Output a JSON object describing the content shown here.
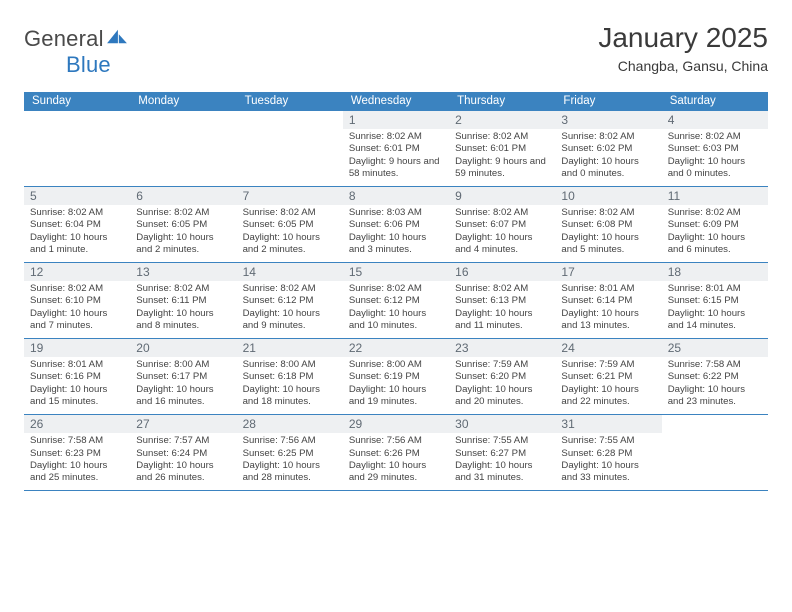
{
  "logo": {
    "word1": "General",
    "word2": "Blue"
  },
  "header": {
    "title": "January 2025",
    "location": "Changba, Gansu, China"
  },
  "colors": {
    "header_blue": "#3b83c0",
    "rule_blue": "#3b83c0",
    "day_bg": "#eef0f2",
    "day_fg": "#606a74",
    "page_bg": "#ffffff",
    "text": "#2a2a2a"
  },
  "calendar": {
    "days_of_week": [
      "Sunday",
      "Monday",
      "Tuesday",
      "Wednesday",
      "Thursday",
      "Friday",
      "Saturday"
    ],
    "weeks": [
      [
        null,
        null,
        null,
        {
          "n": "1",
          "sunrise": "Sunrise: 8:02 AM",
          "sunset": "Sunset: 6:01 PM",
          "daylight": "Daylight: 9 hours and 58 minutes."
        },
        {
          "n": "2",
          "sunrise": "Sunrise: 8:02 AM",
          "sunset": "Sunset: 6:01 PM",
          "daylight": "Daylight: 9 hours and 59 minutes."
        },
        {
          "n": "3",
          "sunrise": "Sunrise: 8:02 AM",
          "sunset": "Sunset: 6:02 PM",
          "daylight": "Daylight: 10 hours and 0 minutes."
        },
        {
          "n": "4",
          "sunrise": "Sunrise: 8:02 AM",
          "sunset": "Sunset: 6:03 PM",
          "daylight": "Daylight: 10 hours and 0 minutes."
        }
      ],
      [
        {
          "n": "5",
          "sunrise": "Sunrise: 8:02 AM",
          "sunset": "Sunset: 6:04 PM",
          "daylight": "Daylight: 10 hours and 1 minute."
        },
        {
          "n": "6",
          "sunrise": "Sunrise: 8:02 AM",
          "sunset": "Sunset: 6:05 PM",
          "daylight": "Daylight: 10 hours and 2 minutes."
        },
        {
          "n": "7",
          "sunrise": "Sunrise: 8:02 AM",
          "sunset": "Sunset: 6:05 PM",
          "daylight": "Daylight: 10 hours and 2 minutes."
        },
        {
          "n": "8",
          "sunrise": "Sunrise: 8:03 AM",
          "sunset": "Sunset: 6:06 PM",
          "daylight": "Daylight: 10 hours and 3 minutes."
        },
        {
          "n": "9",
          "sunrise": "Sunrise: 8:02 AM",
          "sunset": "Sunset: 6:07 PM",
          "daylight": "Daylight: 10 hours and 4 minutes."
        },
        {
          "n": "10",
          "sunrise": "Sunrise: 8:02 AM",
          "sunset": "Sunset: 6:08 PM",
          "daylight": "Daylight: 10 hours and 5 minutes."
        },
        {
          "n": "11",
          "sunrise": "Sunrise: 8:02 AM",
          "sunset": "Sunset: 6:09 PM",
          "daylight": "Daylight: 10 hours and 6 minutes."
        }
      ],
      [
        {
          "n": "12",
          "sunrise": "Sunrise: 8:02 AM",
          "sunset": "Sunset: 6:10 PM",
          "daylight": "Daylight: 10 hours and 7 minutes."
        },
        {
          "n": "13",
          "sunrise": "Sunrise: 8:02 AM",
          "sunset": "Sunset: 6:11 PM",
          "daylight": "Daylight: 10 hours and 8 minutes."
        },
        {
          "n": "14",
          "sunrise": "Sunrise: 8:02 AM",
          "sunset": "Sunset: 6:12 PM",
          "daylight": "Daylight: 10 hours and 9 minutes."
        },
        {
          "n": "15",
          "sunrise": "Sunrise: 8:02 AM",
          "sunset": "Sunset: 6:12 PM",
          "daylight": "Daylight: 10 hours and 10 minutes."
        },
        {
          "n": "16",
          "sunrise": "Sunrise: 8:02 AM",
          "sunset": "Sunset: 6:13 PM",
          "daylight": "Daylight: 10 hours and 11 minutes."
        },
        {
          "n": "17",
          "sunrise": "Sunrise: 8:01 AM",
          "sunset": "Sunset: 6:14 PM",
          "daylight": "Daylight: 10 hours and 13 minutes."
        },
        {
          "n": "18",
          "sunrise": "Sunrise: 8:01 AM",
          "sunset": "Sunset: 6:15 PM",
          "daylight": "Daylight: 10 hours and 14 minutes."
        }
      ],
      [
        {
          "n": "19",
          "sunrise": "Sunrise: 8:01 AM",
          "sunset": "Sunset: 6:16 PM",
          "daylight": "Daylight: 10 hours and 15 minutes."
        },
        {
          "n": "20",
          "sunrise": "Sunrise: 8:00 AM",
          "sunset": "Sunset: 6:17 PM",
          "daylight": "Daylight: 10 hours and 16 minutes."
        },
        {
          "n": "21",
          "sunrise": "Sunrise: 8:00 AM",
          "sunset": "Sunset: 6:18 PM",
          "daylight": "Daylight: 10 hours and 18 minutes."
        },
        {
          "n": "22",
          "sunrise": "Sunrise: 8:00 AM",
          "sunset": "Sunset: 6:19 PM",
          "daylight": "Daylight: 10 hours and 19 minutes."
        },
        {
          "n": "23",
          "sunrise": "Sunrise: 7:59 AM",
          "sunset": "Sunset: 6:20 PM",
          "daylight": "Daylight: 10 hours and 20 minutes."
        },
        {
          "n": "24",
          "sunrise": "Sunrise: 7:59 AM",
          "sunset": "Sunset: 6:21 PM",
          "daylight": "Daylight: 10 hours and 22 minutes."
        },
        {
          "n": "25",
          "sunrise": "Sunrise: 7:58 AM",
          "sunset": "Sunset: 6:22 PM",
          "daylight": "Daylight: 10 hours and 23 minutes."
        }
      ],
      [
        {
          "n": "26",
          "sunrise": "Sunrise: 7:58 AM",
          "sunset": "Sunset: 6:23 PM",
          "daylight": "Daylight: 10 hours and 25 minutes."
        },
        {
          "n": "27",
          "sunrise": "Sunrise: 7:57 AM",
          "sunset": "Sunset: 6:24 PM",
          "daylight": "Daylight: 10 hours and 26 minutes."
        },
        {
          "n": "28",
          "sunrise": "Sunrise: 7:56 AM",
          "sunset": "Sunset: 6:25 PM",
          "daylight": "Daylight: 10 hours and 28 minutes."
        },
        {
          "n": "29",
          "sunrise": "Sunrise: 7:56 AM",
          "sunset": "Sunset: 6:26 PM",
          "daylight": "Daylight: 10 hours and 29 minutes."
        },
        {
          "n": "30",
          "sunrise": "Sunrise: 7:55 AM",
          "sunset": "Sunset: 6:27 PM",
          "daylight": "Daylight: 10 hours and 31 minutes."
        },
        {
          "n": "31",
          "sunrise": "Sunrise: 7:55 AM",
          "sunset": "Sunset: 6:28 PM",
          "daylight": "Daylight: 10 hours and 33 minutes."
        },
        null
      ]
    ]
  }
}
